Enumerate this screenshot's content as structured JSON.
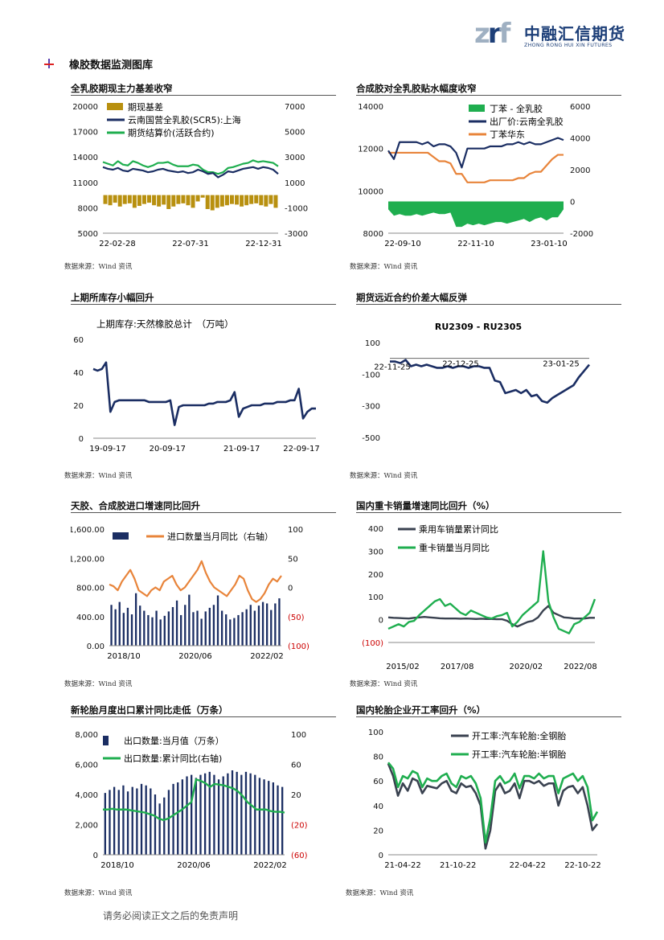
{
  "header": {
    "logo_mark": "zrf",
    "logo_cn": "中融汇信期货",
    "logo_en": "ZHONG RONG HUI XIN FUTURES"
  },
  "section_title": "橡胶数据监测图库",
  "source_label": "数据来源：Wind 资讯",
  "footer": "请务必阅读正文之后的免责声明",
  "colors": {
    "navy": "#1b2e63",
    "green": "#1fae4f",
    "orange": "#e8843a",
    "gold": "#b8900f",
    "gray": "#3a4250",
    "red": "#cc0000"
  },
  "panels": [
    {
      "id": "p1",
      "title": "全乳胶期现主力基差收窄"
    },
    {
      "id": "p2",
      "title": "合成胶对全乳胶贴水幅度收窄"
    },
    {
      "id": "p3",
      "title": "上期所库存小幅回升"
    },
    {
      "id": "p4",
      "title": "期货远近合约价差大幅反弹"
    },
    {
      "id": "p5",
      "title": "天胶、合成胶进口增速同比回升"
    },
    {
      "id": "p6",
      "title": "国内重卡销量增速同比回升（%）"
    },
    {
      "id": "p7",
      "title": "新轮胎月度出口累计同比走低（万条）"
    },
    {
      "id": "p8",
      "title": "国内轮胎企业开工率回升（%）"
    }
  ],
  "chart_data": [
    {
      "id": "p1",
      "type": "line",
      "x_ticks": [
        "22-02-28",
        "22-07-31",
        "22-12-31"
      ],
      "left_axis": {
        "ticks": [
          "20000",
          "17000",
          "14000",
          "11000",
          "8000",
          "5000"
        ],
        "range": [
          5000,
          20000
        ]
      },
      "right_axis": {
        "ticks": [
          "7000",
          "5000",
          "3000",
          "1000",
          "-1000",
          "-3000"
        ],
        "range": [
          -3000,
          7000
        ]
      },
      "series": [
        {
          "name": "期现基差",
          "type": "bar",
          "axis": "right",
          "color": "gold",
          "values": [
            -700,
            -800,
            -600,
            -900,
            -700,
            -650,
            -1000,
            -850,
            -700,
            -600,
            -800,
            -900,
            -750,
            -1100,
            -900,
            -700,
            -650,
            -800,
            -1000,
            -500,
            -200,
            -1100,
            -1200,
            -1000,
            -900,
            -800,
            -700,
            -750,
            -900,
            -800,
            -700,
            -650,
            -800,
            -900,
            -700,
            -1000
          ]
        },
        {
          "name": "云南国营全乳胶(SCR5):上海",
          "type": "line",
          "axis": "left",
          "color": "navy",
          "values": [
            12800,
            12600,
            12500,
            12700,
            12400,
            12300,
            12600,
            12500,
            12400,
            12200,
            12300,
            12500,
            12600,
            12400,
            12300,
            12200,
            12300,
            12100,
            12200,
            12500,
            12300,
            12000,
            12100,
            11600,
            11900,
            12300,
            12200,
            12400,
            12600,
            12700,
            12800,
            12600,
            12800,
            12700,
            12500,
            12000
          ]
        },
        {
          "name": "期货结算价(活跃合约)",
          "type": "line",
          "axis": "left",
          "color": "green",
          "values": [
            13400,
            13200,
            13000,
            13500,
            13100,
            13000,
            13500,
            13300,
            13000,
            12800,
            13000,
            13300,
            13300,
            13400,
            13100,
            12900,
            12900,
            12900,
            13100,
            13000,
            12500,
            12200,
            12200,
            12000,
            12200,
            12700,
            12800,
            13000,
            13200,
            13300,
            13600,
            13400,
            13500,
            13400,
            13300,
            12900
          ]
        }
      ]
    },
    {
      "id": "p2",
      "type": "line",
      "x_ticks": [
        "22-09-10",
        "22-11-10",
        "23-01-10"
      ],
      "left_axis": {
        "ticks": [
          "14000",
          "12000",
          "10000",
          "8000"
        ],
        "range": [
          8000,
          14000
        ]
      },
      "right_axis": {
        "ticks": [
          "6000",
          "4000",
          "2000",
          "0",
          "-2000"
        ],
        "range": [
          -2000,
          6000
        ]
      },
      "series": [
        {
          "name": "丁苯 - 全乳胶",
          "type": "area",
          "axis": "right",
          "color": "green",
          "values": [
            -500,
            -900,
            -800,
            -900,
            -900,
            -800,
            -900,
            -800,
            -700,
            -800,
            -800,
            -700,
            -1600,
            -1600,
            -1400,
            -1500,
            -1400,
            -1500,
            -1400,
            -1300,
            -1300,
            -1400,
            -1300,
            -1200,
            -1100,
            -1300,
            -1100,
            -1000,
            -1200,
            -1000,
            -1000,
            -500
          ]
        },
        {
          "name": "出厂价:云南全乳胶",
          "type": "line",
          "axis": "left",
          "color": "navy",
          "values": [
            11900,
            11500,
            12300,
            12300,
            12300,
            12300,
            12200,
            12300,
            12100,
            12200,
            12200,
            12100,
            11800,
            11100,
            12000,
            12000,
            12000,
            12000,
            12100,
            12100,
            12100,
            12200,
            12200,
            12300,
            12200,
            12300,
            12200,
            12200,
            12300,
            12400,
            12500,
            12400
          ]
        },
        {
          "name": "丁苯华东",
          "type": "line",
          "axis": "left",
          "color": "orange",
          "values": [
            11800,
            11800,
            11800,
            11800,
            11800,
            11800,
            11800,
            11800,
            11600,
            11400,
            11400,
            11300,
            10800,
            10800,
            10400,
            10400,
            10400,
            10400,
            10500,
            10500,
            10500,
            10500,
            10500,
            10600,
            10600,
            10800,
            10900,
            10900,
            11200,
            11500,
            11700,
            11700
          ]
        }
      ]
    },
    {
      "id": "p3",
      "type": "line",
      "title": "上期库存:天然橡胶总计　（万吨）",
      "x_ticks": [
        "19-09-17",
        "20-09-17",
        "21-09-17",
        "22-09-17"
      ],
      "y_ticks": [
        "60",
        "40",
        "20",
        "0"
      ],
      "ylim": [
        0,
        60
      ],
      "series": [
        {
          "name": "上期库存:天然橡胶总计",
          "color": "navy",
          "values": [
            42,
            41,
            42,
            46,
            16,
            22,
            23,
            23,
            23,
            23,
            23,
            23,
            23,
            22,
            22,
            22,
            22,
            22,
            23,
            8,
            19,
            20,
            20,
            20,
            20,
            20,
            20,
            21,
            21,
            22,
            22,
            22,
            23,
            28,
            13,
            18,
            19,
            20,
            20,
            20,
            21,
            21,
            21,
            22,
            22,
            22,
            23,
            23,
            30,
            12,
            16,
            18,
            18
          ]
        }
      ]
    },
    {
      "id": "p4",
      "type": "line",
      "title": "RU2309 - RU2305",
      "x_ticks": [
        "22-11-25",
        "22-12-25",
        "23-01-25"
      ],
      "y_ticks": [
        "100",
        "-100",
        "-300",
        "-500"
      ],
      "ylim": [
        -500,
        100
      ],
      "series": [
        {
          "name": "RU2309 - RU2305",
          "color": "navy",
          "values": [
            -20,
            -20,
            -30,
            -10,
            -50,
            -40,
            -50,
            -40,
            -50,
            -60,
            -60,
            -50,
            -60,
            -50,
            -50,
            -60,
            -50,
            -50,
            -60,
            -60,
            -140,
            -150,
            -220,
            -210,
            -200,
            -220,
            -200,
            -240,
            -230,
            -270,
            -280,
            -250,
            -230,
            -210,
            -190,
            -170,
            -120,
            -80,
            -40
          ]
        }
      ]
    },
    {
      "id": "p5",
      "type": "bar",
      "x_ticks": [
        "2018/10",
        "2020/06",
        "2022/02"
      ],
      "left_axis": {
        "ticks": [
          "1,600.00",
          "1,200.00",
          "800.00",
          "400.00",
          "0.00"
        ],
        "range": [
          0,
          1600
        ]
      },
      "right_axis": {
        "ticks": [
          "100",
          "50",
          "0",
          "(50)",
          "(100)"
        ],
        "range": [
          -100,
          100
        ]
      },
      "series": [
        {
          "name": "进口数量",
          "type": "bar",
          "axis": "left",
          "color": "navy",
          "values": [
            560,
            500,
            600,
            450,
            520,
            430,
            720,
            550,
            480,
            420,
            390,
            480,
            360,
            410,
            470,
            530,
            620,
            420,
            560,
            700,
            460,
            480,
            370,
            470,
            520,
            560,
            690,
            480,
            430,
            360,
            380,
            420,
            460,
            500,
            560,
            480,
            550,
            600,
            580,
            490,
            580,
            650
          ]
        },
        {
          "name": "进口数量当月同比（右轴）",
          "type": "line",
          "axis": "right",
          "color": "orange",
          "values": [
            5,
            2,
            -5,
            10,
            20,
            30,
            15,
            -5,
            -10,
            -15,
            -5,
            0,
            -5,
            10,
            15,
            20,
            5,
            -5,
            0,
            10,
            20,
            30,
            45,
            25,
            10,
            0,
            -5,
            -10,
            -15,
            -5,
            5,
            20,
            15,
            -5,
            -20,
            -25,
            -20,
            -10,
            5,
            15,
            10,
            20
          ]
        }
      ]
    },
    {
      "id": "p6",
      "type": "line",
      "x_ticks": [
        "2015/02",
        "2017/08",
        "2020/02",
        "2022/08"
      ],
      "y_ticks": [
        "400",
        "300",
        "200",
        "100",
        "0",
        "(100)"
      ],
      "ylim": [
        -100,
        400
      ],
      "series": [
        {
          "name": "乘用车销量累计同比",
          "color": "gray",
          "values": [
            10,
            8,
            7,
            6,
            5,
            8,
            10,
            12,
            10,
            8,
            6,
            5,
            5,
            5,
            4,
            5,
            4,
            3,
            4,
            3,
            3,
            2,
            2,
            -5,
            -20,
            -30,
            -20,
            -10,
            -5,
            10,
            40,
            60,
            30,
            20,
            10,
            8,
            5,
            5,
            5,
            8,
            8
          ]
        },
        {
          "name": "重卡销量当月同比",
          "color": "green",
          "values": [
            -40,
            -30,
            -20,
            -30,
            -10,
            -5,
            20,
            40,
            60,
            80,
            90,
            60,
            70,
            50,
            30,
            20,
            40,
            30,
            20,
            10,
            5,
            15,
            20,
            30,
            -30,
            -10,
            20,
            40,
            60,
            80,
            300,
            80,
            10,
            -40,
            -50,
            -60,
            -20,
            -10,
            10,
            30,
            90
          ]
        }
      ]
    },
    {
      "id": "p7",
      "type": "bar",
      "x_ticks": [
        "2018/10",
        "2020/06",
        "2022/02"
      ],
      "left_axis": {
        "ticks": [
          "8,000",
          "6,000",
          "4,000",
          "2,000",
          "0"
        ],
        "range": [
          0,
          8000
        ]
      },
      "right_axis": {
        "ticks": [
          "100",
          "60",
          "20",
          "(20)",
          "(60)"
        ],
        "range": [
          -60,
          100
        ]
      },
      "series": [
        {
          "name": "出口数量:当月值（万条）",
          "type": "bar",
          "axis": "left",
          "color": "navy",
          "values": [
            4100,
            4300,
            4500,
            4300,
            4600,
            4200,
            4500,
            4400,
            4700,
            4600,
            4400,
            4000,
            3400,
            3800,
            4300,
            4700,
            4800,
            5000,
            5200,
            5300,
            5100,
            5300,
            5400,
            5500,
            5300,
            5000,
            5200,
            5400,
            5600,
            5500,
            5300,
            5500,
            5400,
            5300,
            5100,
            5000,
            4900,
            4800,
            4600,
            4500
          ]
        },
        {
          "name": "出口数量:累计同比(右轴)",
          "type": "line",
          "axis": "right",
          "color": "green",
          "values": [
            0,
            0,
            1,
            0,
            0,
            0,
            -1,
            -2,
            -3,
            -4,
            -6,
            -8,
            -12,
            -14,
            -12,
            -8,
            -4,
            0,
            5,
            10,
            40,
            38,
            35,
            30,
            34,
            33,
            32,
            30,
            28,
            24,
            18,
            10,
            5,
            0,
            0,
            0,
            -2,
            -3,
            -3,
            -4
          ]
        }
      ]
    },
    {
      "id": "p8",
      "type": "line",
      "x_ticks": [
        "21-04-22",
        "21-10-22",
        "22-04-22",
        "22-10-22"
      ],
      "y_ticks": [
        "100",
        "80",
        "60",
        "40",
        "20",
        "0"
      ],
      "ylim": [
        0,
        100
      ],
      "series": [
        {
          "name": "开工率:汽车轮胎:全钢胎",
          "color": "gray",
          "values": [
            74,
            64,
            48,
            58,
            52,
            62,
            60,
            50,
            56,
            55,
            54,
            58,
            60,
            52,
            50,
            58,
            55,
            56,
            50,
            40,
            5,
            20,
            52,
            58,
            50,
            52,
            58,
            46,
            60,
            60,
            58,
            60,
            56,
            58,
            58,
            40,
            52,
            55,
            56,
            50,
            55,
            40,
            20,
            25
          ]
        },
        {
          "name": "开工率:汽车轮胎:半钢胎",
          "color": "green",
          "values": [
            75,
            70,
            55,
            64,
            62,
            68,
            66,
            55,
            62,
            60,
            60,
            64,
            66,
            58,
            55,
            64,
            62,
            64,
            58,
            46,
            10,
            30,
            60,
            64,
            58,
            60,
            66,
            54,
            64,
            64,
            62,
            66,
            62,
            64,
            64,
            50,
            62,
            64,
            66,
            60,
            64,
            55,
            28,
            35
          ]
        }
      ]
    }
  ]
}
